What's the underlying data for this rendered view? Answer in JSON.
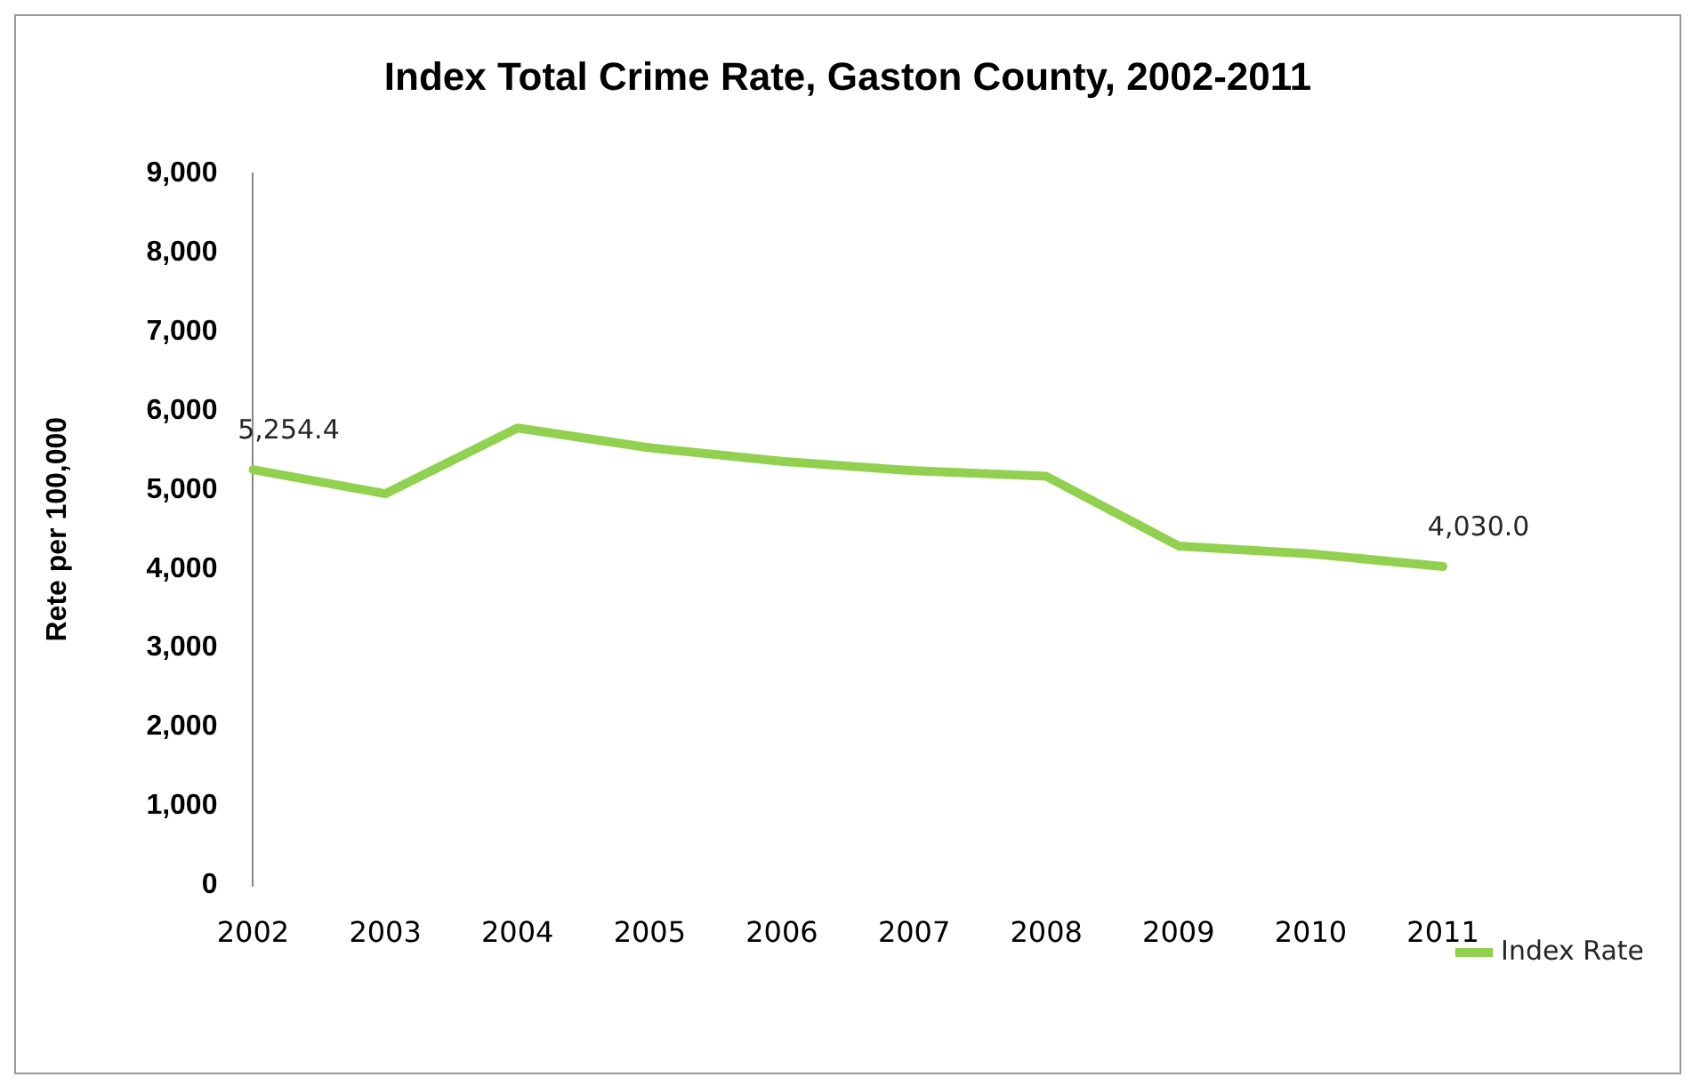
{
  "chart_data": {
    "type": "line",
    "title": "Index Total Crime Rate, Gaston County, 2002-2011",
    "ylabel": "Rete per 100,000",
    "categories": [
      "2002",
      "2003",
      "2004",
      "2005",
      "2006",
      "2007",
      "2008",
      "2009",
      "2010",
      "2011"
    ],
    "series": [
      {
        "name": "Index Rate",
        "color": "#92d050",
        "values": [
          5254.4,
          4950,
          5780,
          5530,
          5360,
          5240,
          5170,
          4290,
          4190,
          4030.0
        ],
        "value_labels": [
          "5,254.4",
          null,
          null,
          null,
          null,
          null,
          null,
          null,
          null,
          "4,030.0"
        ]
      }
    ],
    "ylim": [
      0,
      9000
    ],
    "yticks": [
      {
        "value": 0,
        "label": "0"
      },
      {
        "value": 1000,
        "label": "1,000"
      },
      {
        "value": 2000,
        "label": "2,000"
      },
      {
        "value": 3000,
        "label": "3,000"
      },
      {
        "value": 4000,
        "label": "4,000"
      },
      {
        "value": 5000,
        "label": "5,000"
      },
      {
        "value": 6000,
        "label": "6,000"
      },
      {
        "value": 7000,
        "label": "7,000"
      },
      {
        "value": 8000,
        "label": "8,000"
      },
      {
        "value": 9000,
        "label": "9,000"
      }
    ],
    "grid": false,
    "legend": "right",
    "marker": "none",
    "line_style": "solid"
  }
}
